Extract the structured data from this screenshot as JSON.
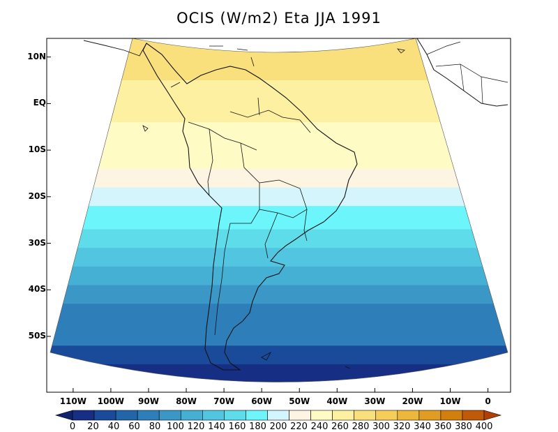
{
  "title": "OCIS (W/m2) Eta JJA 1991",
  "lat_labels": [
    "10N",
    "EQ",
    "10S",
    "20S",
    "30S",
    "40S",
    "50S"
  ],
  "lon_labels": [
    "110W",
    "100W",
    "90W",
    "80W",
    "70W",
    "60W",
    "50W",
    "40W",
    "30W",
    "20W",
    "10W",
    "0"
  ],
  "colorbar": {
    "ticks": [
      "0",
      "20",
      "40",
      "60",
      "80",
      "100",
      "120",
      "140",
      "160",
      "180",
      "200",
      "220",
      "240",
      "260",
      "280",
      "300",
      "320",
      "340",
      "360",
      "380",
      "400"
    ],
    "colors": [
      "#10246e",
      "#162f84",
      "#1a4a9a",
      "#2266aa",
      "#2e7fb9",
      "#3a97c6",
      "#46b0d4",
      "#52c6e0",
      "#5fdcea",
      "#6cf6fb",
      "#d4f5fb",
      "#fdf4e2",
      "#fffbc4",
      "#fdf0a0",
      "#f9e07c",
      "#f5cd58",
      "#ecb73a",
      "#e09d22",
      "#d27f10",
      "#c05a08",
      "#b04006"
    ]
  },
  "chart_data": {
    "type": "heatmap",
    "title": "OCIS (W/m2) Eta JJA 1991",
    "variable": "OCIS",
    "units": "W/m2",
    "season": "JJA",
    "year": 1991,
    "model": "Eta",
    "lat_ticks": [
      10,
      0,
      -10,
      -20,
      -30,
      -40,
      -50
    ],
    "lon_ticks": [
      -110,
      -100,
      -90,
      -80,
      -70,
      -60,
      -50,
      -40,
      -30,
      -20,
      -10,
      0
    ],
    "levels": [
      0,
      20,
      40,
      60,
      80,
      100,
      120,
      140,
      160,
      180,
      200,
      220,
      240,
      260,
      280,
      300,
      320,
      340,
      360,
      380,
      400
    ],
    "latitude_bands": [
      {
        "lat_min": 5,
        "lat_max": 14,
        "value": 290
      },
      {
        "lat_min": 0,
        "lat_max": 5,
        "value": 275
      },
      {
        "lat_min": -4,
        "lat_max": 0,
        "value": 265
      },
      {
        "lat_min": -9,
        "lat_max": -4,
        "value": 255
      },
      {
        "lat_min": -14,
        "lat_max": -9,
        "value": 245
      },
      {
        "lat_min": -18,
        "lat_max": -14,
        "value": 230
      },
      {
        "lat_min": -22,
        "lat_max": -18,
        "value": 200
      },
      {
        "lat_min": -27,
        "lat_max": -22,
        "value": 185
      },
      {
        "lat_min": -31,
        "lat_max": -27,
        "value": 170
      },
      {
        "lat_min": -35,
        "lat_max": -31,
        "value": 150
      },
      {
        "lat_min": -39,
        "lat_max": -35,
        "value": 135
      },
      {
        "lat_min": -43,
        "lat_max": -39,
        "value": 115
      },
      {
        "lat_min": -48,
        "lat_max": -43,
        "value": 95
      },
      {
        "lat_min": -52,
        "lat_max": -48,
        "value": 80
      },
      {
        "lat_min": -56,
        "lat_max": -52,
        "value": 55
      },
      {
        "lat_min": -62,
        "lat_max": -56,
        "value": 35
      }
    ]
  }
}
